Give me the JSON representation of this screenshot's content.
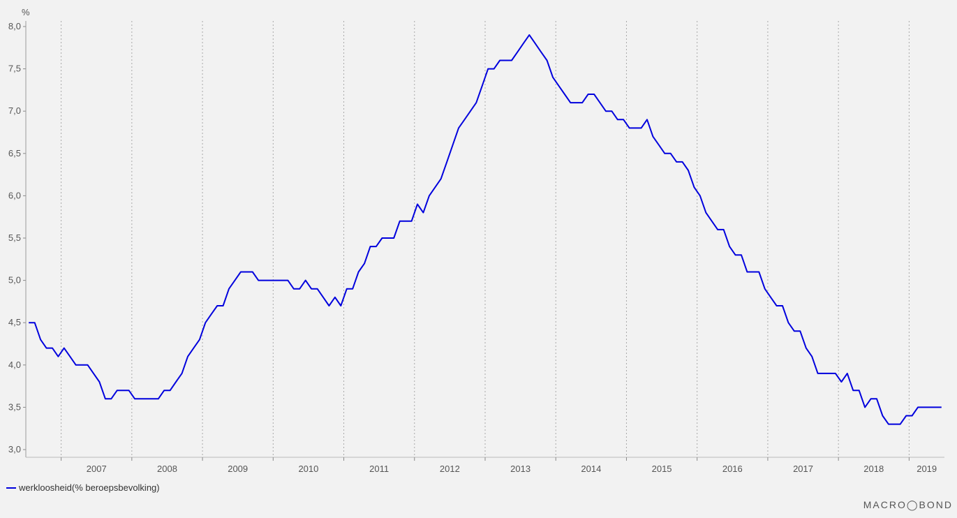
{
  "chart_data": {
    "type": "line",
    "ylabel": "%",
    "ylim": [
      3.0,
      8.0
    ],
    "yticks": [
      "8,0",
      "7,5",
      "7,0",
      "6,5",
      "6,0",
      "5,5",
      "5,0",
      "4,5",
      "4,0",
      "3,5",
      "3,0"
    ],
    "yticks_values": [
      8.0,
      7.5,
      7.0,
      6.5,
      6.0,
      5.5,
      5.0,
      4.5,
      4.0,
      3.5,
      3.0
    ],
    "xlim": [
      "2006-07",
      "2019-07"
    ],
    "xticks": [
      "2007",
      "2008",
      "2009",
      "2010",
      "2011",
      "2012",
      "2013",
      "2014",
      "2015",
      "2016",
      "2017",
      "2018",
      "2019"
    ],
    "grid": "vertical dotted lines at year boundaries",
    "legend_position": "bottom-left",
    "series": [
      {
        "name": "werkloosheid(% beroepsbevolking)",
        "color": "#0000dd",
        "x_start": "2006-07",
        "frequency": "monthly",
        "values": [
          4.5,
          4.5,
          4.3,
          4.2,
          4.2,
          4.1,
          4.2,
          4.1,
          4.0,
          4.0,
          4.0,
          3.9,
          3.8,
          3.6,
          3.6,
          3.7,
          3.7,
          3.7,
          3.6,
          3.6,
          3.6,
          3.6,
          3.6,
          3.7,
          3.7,
          3.8,
          3.9,
          4.1,
          4.2,
          4.3,
          4.5,
          4.6,
          4.7,
          4.7,
          4.9,
          5.0,
          5.1,
          5.1,
          5.1,
          5.0,
          5.0,
          5.0,
          5.0,
          5.0,
          5.0,
          4.9,
          4.9,
          5.0,
          4.9,
          4.9,
          4.8,
          4.7,
          4.8,
          4.7,
          4.9,
          4.9,
          5.1,
          5.2,
          5.4,
          5.4,
          5.5,
          5.5,
          5.5,
          5.7,
          5.7,
          5.7,
          5.9,
          5.8,
          6.0,
          6.1,
          6.2,
          6.4,
          6.6,
          6.8,
          6.9,
          7.0,
          7.1,
          7.3,
          7.5,
          7.5,
          7.6,
          7.6,
          7.6,
          7.7,
          7.8,
          7.9,
          7.8,
          7.7,
          7.6,
          7.4,
          7.3,
          7.2,
          7.1,
          7.1,
          7.1,
          7.2,
          7.2,
          7.1,
          7.0,
          7.0,
          6.9,
          6.9,
          6.8,
          6.8,
          6.8,
          6.9,
          6.7,
          6.6,
          6.5,
          6.5,
          6.4,
          6.4,
          6.3,
          6.1,
          6.0,
          5.8,
          5.7,
          5.6,
          5.6,
          5.4,
          5.3,
          5.3,
          5.1,
          5.1,
          5.1,
          4.9,
          4.8,
          4.7,
          4.7,
          4.5,
          4.4,
          4.4,
          4.2,
          4.1,
          3.9,
          3.9,
          3.9,
          3.9,
          3.8,
          3.9,
          3.7,
          3.7,
          3.5,
          3.6,
          3.6,
          3.4,
          3.3,
          3.3,
          3.3,
          3.4,
          3.4,
          3.5,
          3.5,
          3.5,
          3.5,
          3.5
        ]
      }
    ]
  },
  "legend": {
    "items": [
      {
        "label": "werkloosheid(% beroepsbevolking)",
        "color": "#0000dd"
      }
    ]
  },
  "branding": {
    "logo_text": "MACRO◯BOND"
  }
}
